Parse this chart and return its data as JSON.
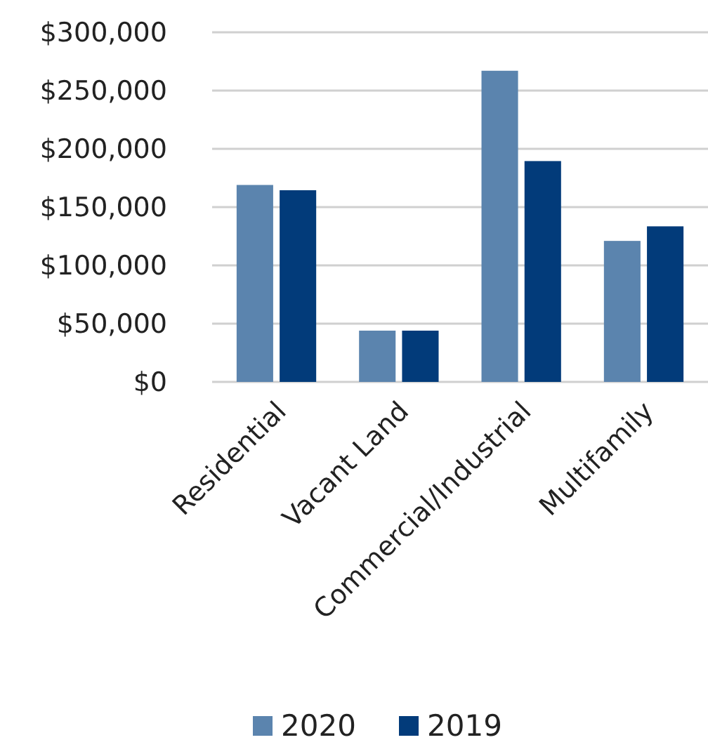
{
  "chart_data": {
    "type": "bar",
    "categories": [
      "Residential",
      "Vacant Land",
      "Commercial/Industrial",
      "Multifamily"
    ],
    "series": [
      {
        "name": "2020",
        "color": "#5b84ae",
        "values": [
          169000,
          44000,
          267000,
          121000
        ]
      },
      {
        "name": "2019",
        "color": "#023b7a",
        "values": [
          164500,
          44000,
          189500,
          133500
        ]
      }
    ],
    "ylim": [
      0,
      300000
    ],
    "yticks": [
      {
        "value": 0,
        "label": "$0"
      },
      {
        "value": 50000,
        "label": "$50,000"
      },
      {
        "value": 100000,
        "label": "$100,000"
      },
      {
        "value": 150000,
        "label": "$150,000"
      },
      {
        "value": 200000,
        "label": "$200,000"
      },
      {
        "value": 250000,
        "label": "$250,000"
      },
      {
        "value": 300000,
        "label": "$300,000"
      }
    ],
    "grid": "y",
    "legend": "bottom"
  }
}
